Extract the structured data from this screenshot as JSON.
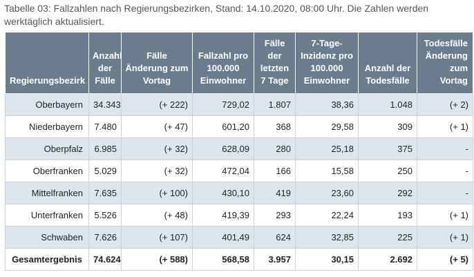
{
  "caption": "Tabelle 03: Fallzahlen nach Regierungsbezirken, Stand: 14.10.2020, 08:00 Uhr. Die Zahlen werden werktäglich aktualisiert.",
  "table": {
    "headers": [
      "Regierungsbezirk",
      "Anzahl der Fälle",
      "Fälle Änderung zum Vortag",
      "Fallzahl pro 100.000 Einwohner",
      "Fälle der letzten 7 Tage",
      "7-Tage-Inzidenz pro 100.000 Einwohner",
      "Anzahl der Todesfälle",
      "Todesfälle Änderung zum Vortag"
    ],
    "rows": [
      [
        "Oberbayern",
        "34.343",
        "(+ 222)",
        "729,02",
        "1.807",
        "38,36",
        "1.048",
        "(+ 2)"
      ],
      [
        "Niederbayern",
        "7.480",
        "(+ 47)",
        "601,20",
        "368",
        "29,58",
        "309",
        "(+ 1)"
      ],
      [
        "Oberpfalz",
        "6.985",
        "(+ 32)",
        "628,09",
        "280",
        "25,18",
        "375",
        "-"
      ],
      [
        "Oberfranken",
        "5.029",
        "(+ 32)",
        "472,04",
        "166",
        "15,58",
        "250",
        "-"
      ],
      [
        "Mittelfranken",
        "7.635",
        "(+ 100)",
        "430,10",
        "419",
        "23,60",
        "292",
        "-"
      ],
      [
        "Unterfranken",
        "5.526",
        "(+ 48)",
        "419,39",
        "293",
        "22,24",
        "193",
        "(+ 1)"
      ],
      [
        "Schwaben",
        "7.626",
        "(+ 107)",
        "401,49",
        "624",
        "32,85",
        "225",
        "(+ 1)"
      ]
    ],
    "total": [
      "Gesamtergebnis",
      "74.624",
      "(+ 588)",
      "568,58",
      "3.957",
      "30,15",
      "2.692",
      "(+ 5)"
    ]
  },
  "colors": {
    "header_bg": "#6a7d8e",
    "row_shade": "#dde6ee",
    "border": "#c9d2da"
  }
}
